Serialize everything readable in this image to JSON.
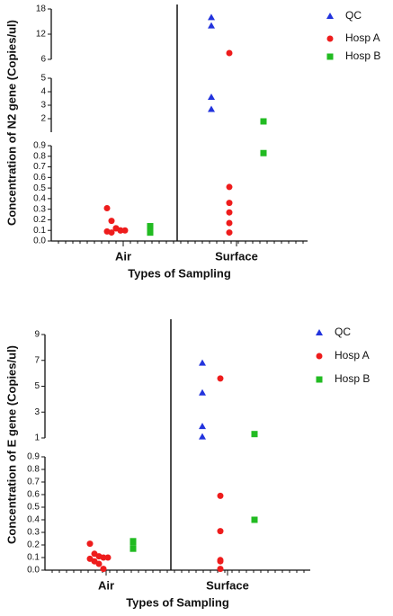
{
  "chart_data": [
    {
      "type": "scatter",
      "y_label": "Concentration of N2 gene (Copies/ul)",
      "x_label": "Types of Sampling",
      "categories": [
        "Air",
        "Surface"
      ],
      "legend": "upper right",
      "broken_axis": true,
      "y_segments": [
        {
          "ylim": [
            0,
            0.9
          ],
          "yticks": [
            {
              "value": 0,
              "label": "0.0"
            },
            0.1,
            0.2,
            0.3,
            0.4,
            0.5,
            0.6,
            0.7,
            0.8,
            0.9
          ]
        },
        {
          "ylim": [
            1,
            5
          ],
          "yticks": [
            2,
            3,
            4,
            5
          ]
        },
        {
          "ylim": [
            6,
            18
          ],
          "yticks": [
            6,
            12,
            18
          ]
        }
      ],
      "series": [
        {
          "name": "QC",
          "color": "#2233dd",
          "marker": "triangle",
          "values": [
            [],
            [
              16,
              14,
              3.6,
              2.7
            ]
          ]
        },
        {
          "name": "Hosp A",
          "color": "#ee1c1c",
          "marker": "circle",
          "values": [
            [
              0.31,
              0.19,
              0.12,
              0.1,
              0.1,
              0.09,
              0.08,
              0.12,
              0.1
            ],
            [
              7.5,
              0.51,
              0.36,
              0.27,
              0.17,
              0.08
            ]
          ]
        },
        {
          "name": "Hosp B",
          "color": "#22bb22",
          "marker": "square",
          "values": [
            [
              0.14,
              0.08,
              0.08
            ],
            [
              1.8,
              0.83
            ]
          ]
        }
      ]
    },
    {
      "type": "scatter",
      "y_label": "Concentration of E gene (Copies/ul)",
      "x_label": "Types of Sampling",
      "categories": [
        "Air",
        "Surface"
      ],
      "legend": "upper right",
      "broken_axis": true,
      "y_segments": [
        {
          "ylim": [
            0,
            0.9
          ],
          "yticks": [
            {
              "value": 0,
              "label": "0.0"
            },
            0.1,
            0.2,
            0.3,
            0.4,
            0.5,
            0.6,
            0.7,
            0.8,
            0.9
          ]
        },
        {
          "ylim": [
            1,
            9
          ],
          "yticks": [
            1,
            3,
            5,
            7,
            9
          ]
        }
      ],
      "series": [
        {
          "name": "QC",
          "color": "#2233dd",
          "marker": "triangle",
          "values": [
            [],
            [
              6.8,
              4.5,
              1.9,
              1.1
            ]
          ]
        },
        {
          "name": "Hosp A",
          "color": "#ee1c1c",
          "marker": "circle",
          "values": [
            [
              0.21,
              0.13,
              0.11,
              0.1,
              0.1,
              0.09,
              0.07,
              0.05,
              0.01
            ],
            [
              5.6,
              0.59,
              0.31,
              0.08,
              0.07,
              0.01
            ]
          ]
        },
        {
          "name": "Hosp B",
          "color": "#22bb22",
          "marker": "square",
          "values": [
            [
              0.23,
              0.22,
              0.17
            ],
            [
              1.3,
              0.4
            ]
          ]
        }
      ]
    }
  ]
}
